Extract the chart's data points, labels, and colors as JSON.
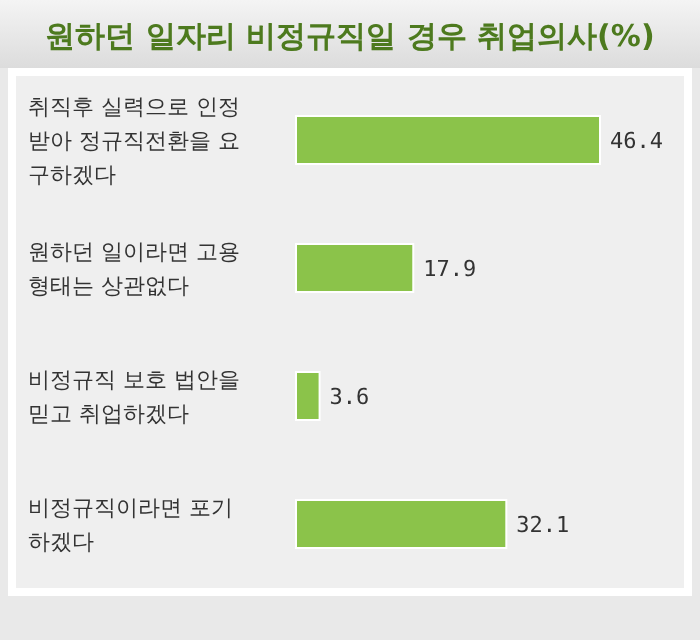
{
  "chart_data": {
    "type": "bar",
    "orientation": "horizontal",
    "data_labels": true,
    "title": "원하던 일자리 비정규직일 경우 취업의사(%)",
    "categories": [
      "취직후 실력으로 인정받아 정규직전환을 요구하겠다",
      "원하던 일이라면 고용형태는 상관없다",
      "비정규직 보호 법안을 믿고 취업하겠다",
      "비정규직이라면 포기하겠다"
    ],
    "values": [
      46.4,
      17.9,
      3.6,
      32.1
    ],
    "color": "#8bc34a"
  }
}
